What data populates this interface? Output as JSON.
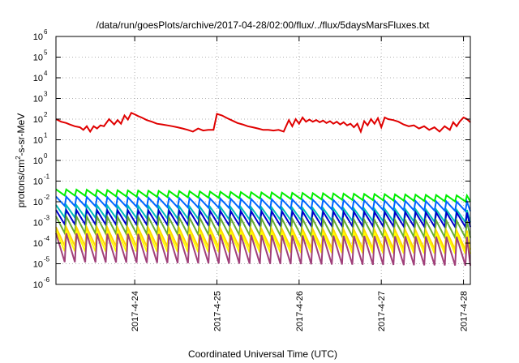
{
  "chart_data": {
    "type": "line",
    "title": "/data/run/goesPlots/archive/2017-04-28/02:00/flux/../flux/5daysMarsFluxes.txt",
    "xlabel": "Coordinated Universal Time (UTC)",
    "ylabel": {
      "base": "protons/cm",
      "exponent": "2",
      "rest": "-s-sr-MeV"
    },
    "yscale": "log",
    "ylim": [
      1e-06,
      1000000.0
    ],
    "y_ticks": [
      {
        "value": 1e-06,
        "base": "10",
        "exp": "-6"
      },
      {
        "value": 1e-05,
        "base": "10",
        "exp": "-5"
      },
      {
        "value": 0.0001,
        "base": "10",
        "exp": "-4"
      },
      {
        "value": 0.001,
        "base": "10",
        "exp": "-3"
      },
      {
        "value": 0.01,
        "base": "10",
        "exp": "-2"
      },
      {
        "value": 0.1,
        "base": "10",
        "exp": "-1"
      },
      {
        "value": 1.0,
        "base": "10",
        "exp": "0"
      },
      {
        "value": 10.0,
        "base": "10",
        "exp": "1"
      },
      {
        "value": 100.0,
        "base": "10",
        "exp": "2"
      },
      {
        "value": 1000.0,
        "base": "10",
        "exp": "3"
      },
      {
        "value": 10000.0,
        "base": "10",
        "exp": "4"
      },
      {
        "value": 100000.0,
        "base": "10",
        "exp": "5"
      },
      {
        "value": 1000000.0,
        "base": "10",
        "exp": "6"
      }
    ],
    "xlim": [
      "2017-04-23T01:00",
      "2017-04-28T02:00"
    ],
    "x_ticks": [
      {
        "value": "2017-04-24T00:00",
        "label": "2017-4-24"
      },
      {
        "value": "2017-04-25T00:00",
        "label": "2017-4-25"
      },
      {
        "value": "2017-04-26T00:00",
        "label": "2017-4-26"
      },
      {
        "value": "2017-04-27T00:00",
        "label": "2017-4-27"
      },
      {
        "value": "2017-04-28T00:00",
        "label": "2017-4-28"
      }
    ],
    "grid": true,
    "series": [
      {
        "color": "#e00000",
        "x": [
          "2017-04-23T01:00",
          "2017-04-23T02:30",
          "2017-04-23T04:00",
          "2017-04-23T05:00",
          "2017-04-23T06:30",
          "2017-04-23T08:00",
          "2017-04-23T09:00",
          "2017-04-23T10:00",
          "2017-04-23T11:00",
          "2017-04-23T12:00",
          "2017-04-23T13:00",
          "2017-04-23T14:00",
          "2017-04-23T15:00",
          "2017-04-23T16:30",
          "2017-04-23T18:00",
          "2017-04-23T19:00",
          "2017-04-23T20:00",
          "2017-04-23T21:00",
          "2017-04-23T22:00",
          "2017-04-23T23:00",
          "2017-04-24T00:00",
          "2017-04-24T01:00",
          "2017-04-24T02:00",
          "2017-04-24T03:30",
          "2017-04-24T05:00",
          "2017-04-24T06:30",
          "2017-04-24T08:00",
          "2017-04-24T09:30",
          "2017-04-24T11:00",
          "2017-04-24T12:30",
          "2017-04-24T14:00",
          "2017-04-24T15:30",
          "2017-04-24T17:00",
          "2017-04-24T18:30",
          "2017-04-24T20:00",
          "2017-04-24T21:30",
          "2017-04-24T23:00",
          "2017-04-25T00:00",
          "2017-04-25T01:30",
          "2017-04-25T03:00",
          "2017-04-25T04:30",
          "2017-04-25T06:00",
          "2017-04-25T07:30",
          "2017-04-25T09:00",
          "2017-04-25T10:30",
          "2017-04-25T12:00",
          "2017-04-25T13:30",
          "2017-04-25T15:00",
          "2017-04-25T16:30",
          "2017-04-25T18:00",
          "2017-04-25T19:30",
          "2017-04-25T21:00",
          "2017-04-25T22:00",
          "2017-04-25T23:00",
          "2017-04-26T00:00",
          "2017-04-26T01:00",
          "2017-04-26T02:00",
          "2017-04-26T03:00",
          "2017-04-26T04:00",
          "2017-04-26T05:00",
          "2017-04-26T06:00",
          "2017-04-26T07:00",
          "2017-04-26T08:00",
          "2017-04-26T09:00",
          "2017-04-26T10:00",
          "2017-04-26T11:00",
          "2017-04-26T12:00",
          "2017-04-26T13:00",
          "2017-04-26T14:00",
          "2017-04-26T15:00",
          "2017-04-26T16:00",
          "2017-04-26T17:00",
          "2017-04-26T18:00",
          "2017-04-26T19:00",
          "2017-04-26T20:00",
          "2017-04-26T21:00",
          "2017-04-26T22:00",
          "2017-04-26T23:00",
          "2017-04-27T00:00",
          "2017-04-27T01:00",
          "2017-04-27T02:00",
          "2017-04-27T03:30",
          "2017-04-27T05:00",
          "2017-04-27T06:30",
          "2017-04-27T08:00",
          "2017-04-27T09:30",
          "2017-04-27T11:00",
          "2017-04-27T12:30",
          "2017-04-27T14:00",
          "2017-04-27T15:30",
          "2017-04-27T17:00",
          "2017-04-27T18:30",
          "2017-04-27T20:00",
          "2017-04-27T21:00",
          "2017-04-27T22:00",
          "2017-04-27T23:00",
          "2017-04-28T00:00",
          "2017-04-28T01:00",
          "2017-04-28T02:00"
        ],
        "y": [
          100,
          75,
          65,
          55,
          45,
          40,
          30,
          45,
          25,
          45,
          35,
          50,
          45,
          100,
          55,
          90,
          60,
          150,
          95,
          200,
          170,
          140,
          120,
          90,
          75,
          60,
          55,
          50,
          45,
          40,
          35,
          30,
          25,
          35,
          28,
          30,
          30,
          180,
          150,
          110,
          85,
          65,
          55,
          45,
          40,
          35,
          30,
          30,
          28,
          30,
          25,
          90,
          45,
          100,
          60,
          120,
          75,
          95,
          75,
          90,
          70,
          85,
          65,
          80,
          60,
          75,
          55,
          70,
          50,
          60,
          40,
          60,
          25,
          80,
          50,
          100,
          60,
          110,
          40,
          120,
          100,
          90,
          75,
          55,
          45,
          50,
          35,
          45,
          30,
          40,
          25,
          45,
          30,
          70,
          45,
          80,
          120,
          100,
          70
        ]
      },
      {
        "color": "#00ee00",
        "x": [
          "2017-04-23T01:00",
          "2017-04-28T02:00"
        ],
        "y": [
          0.04,
          0.02
        ],
        "period_hours": 3,
        "trough_ratio": 0.5
      },
      {
        "color": "#0066ff",
        "x": [
          "2017-04-23T01:00",
          "2017-04-28T02:00"
        ],
        "y": [
          0.018,
          0.01
        ],
        "period_hours": 3,
        "trough_ratio": 0.35
      },
      {
        "color": "#00bbbb",
        "x": [
          "2017-04-23T01:00",
          "2017-04-28T02:00"
        ],
        "y": [
          0.007,
          0.004
        ],
        "period_hours": 3,
        "trough_ratio": 0.25
      },
      {
        "color": "#0000cc",
        "x": [
          "2017-04-23T01:00",
          "2017-04-28T02:00"
        ],
        "y": [
          0.004,
          0.003
        ],
        "period_hours": 3,
        "trough_ratio": 0.2
      },
      {
        "color": "#66aa33",
        "x": [
          "2017-04-23T01:00",
          "2017-04-28T02:00"
        ],
        "y": [
          0.002,
          0.0012
        ],
        "period_hours": 3,
        "trough_ratio": 0.15
      },
      {
        "color": "#ffd700",
        "x": [
          "2017-04-23T01:00",
          "2017-04-28T02:00"
        ],
        "y": [
          0.0006,
          0.0004
        ],
        "period_hours": 3,
        "trough_ratio": 0.12
      },
      {
        "color": "#ffff00",
        "x": [
          "2017-04-23T01:00",
          "2017-04-28T02:00"
        ],
        "y": [
          0.0004,
          0.0003
        ],
        "period_hours": 3,
        "trough_ratio": 0.1
      },
      {
        "color": "#a0407a",
        "x": [
          "2017-04-23T01:00",
          "2017-04-28T02:00"
        ],
        "y": [
          0.0003,
          0.0002
        ],
        "period_hours": 3,
        "trough_ratio": 0.04
      }
    ]
  }
}
